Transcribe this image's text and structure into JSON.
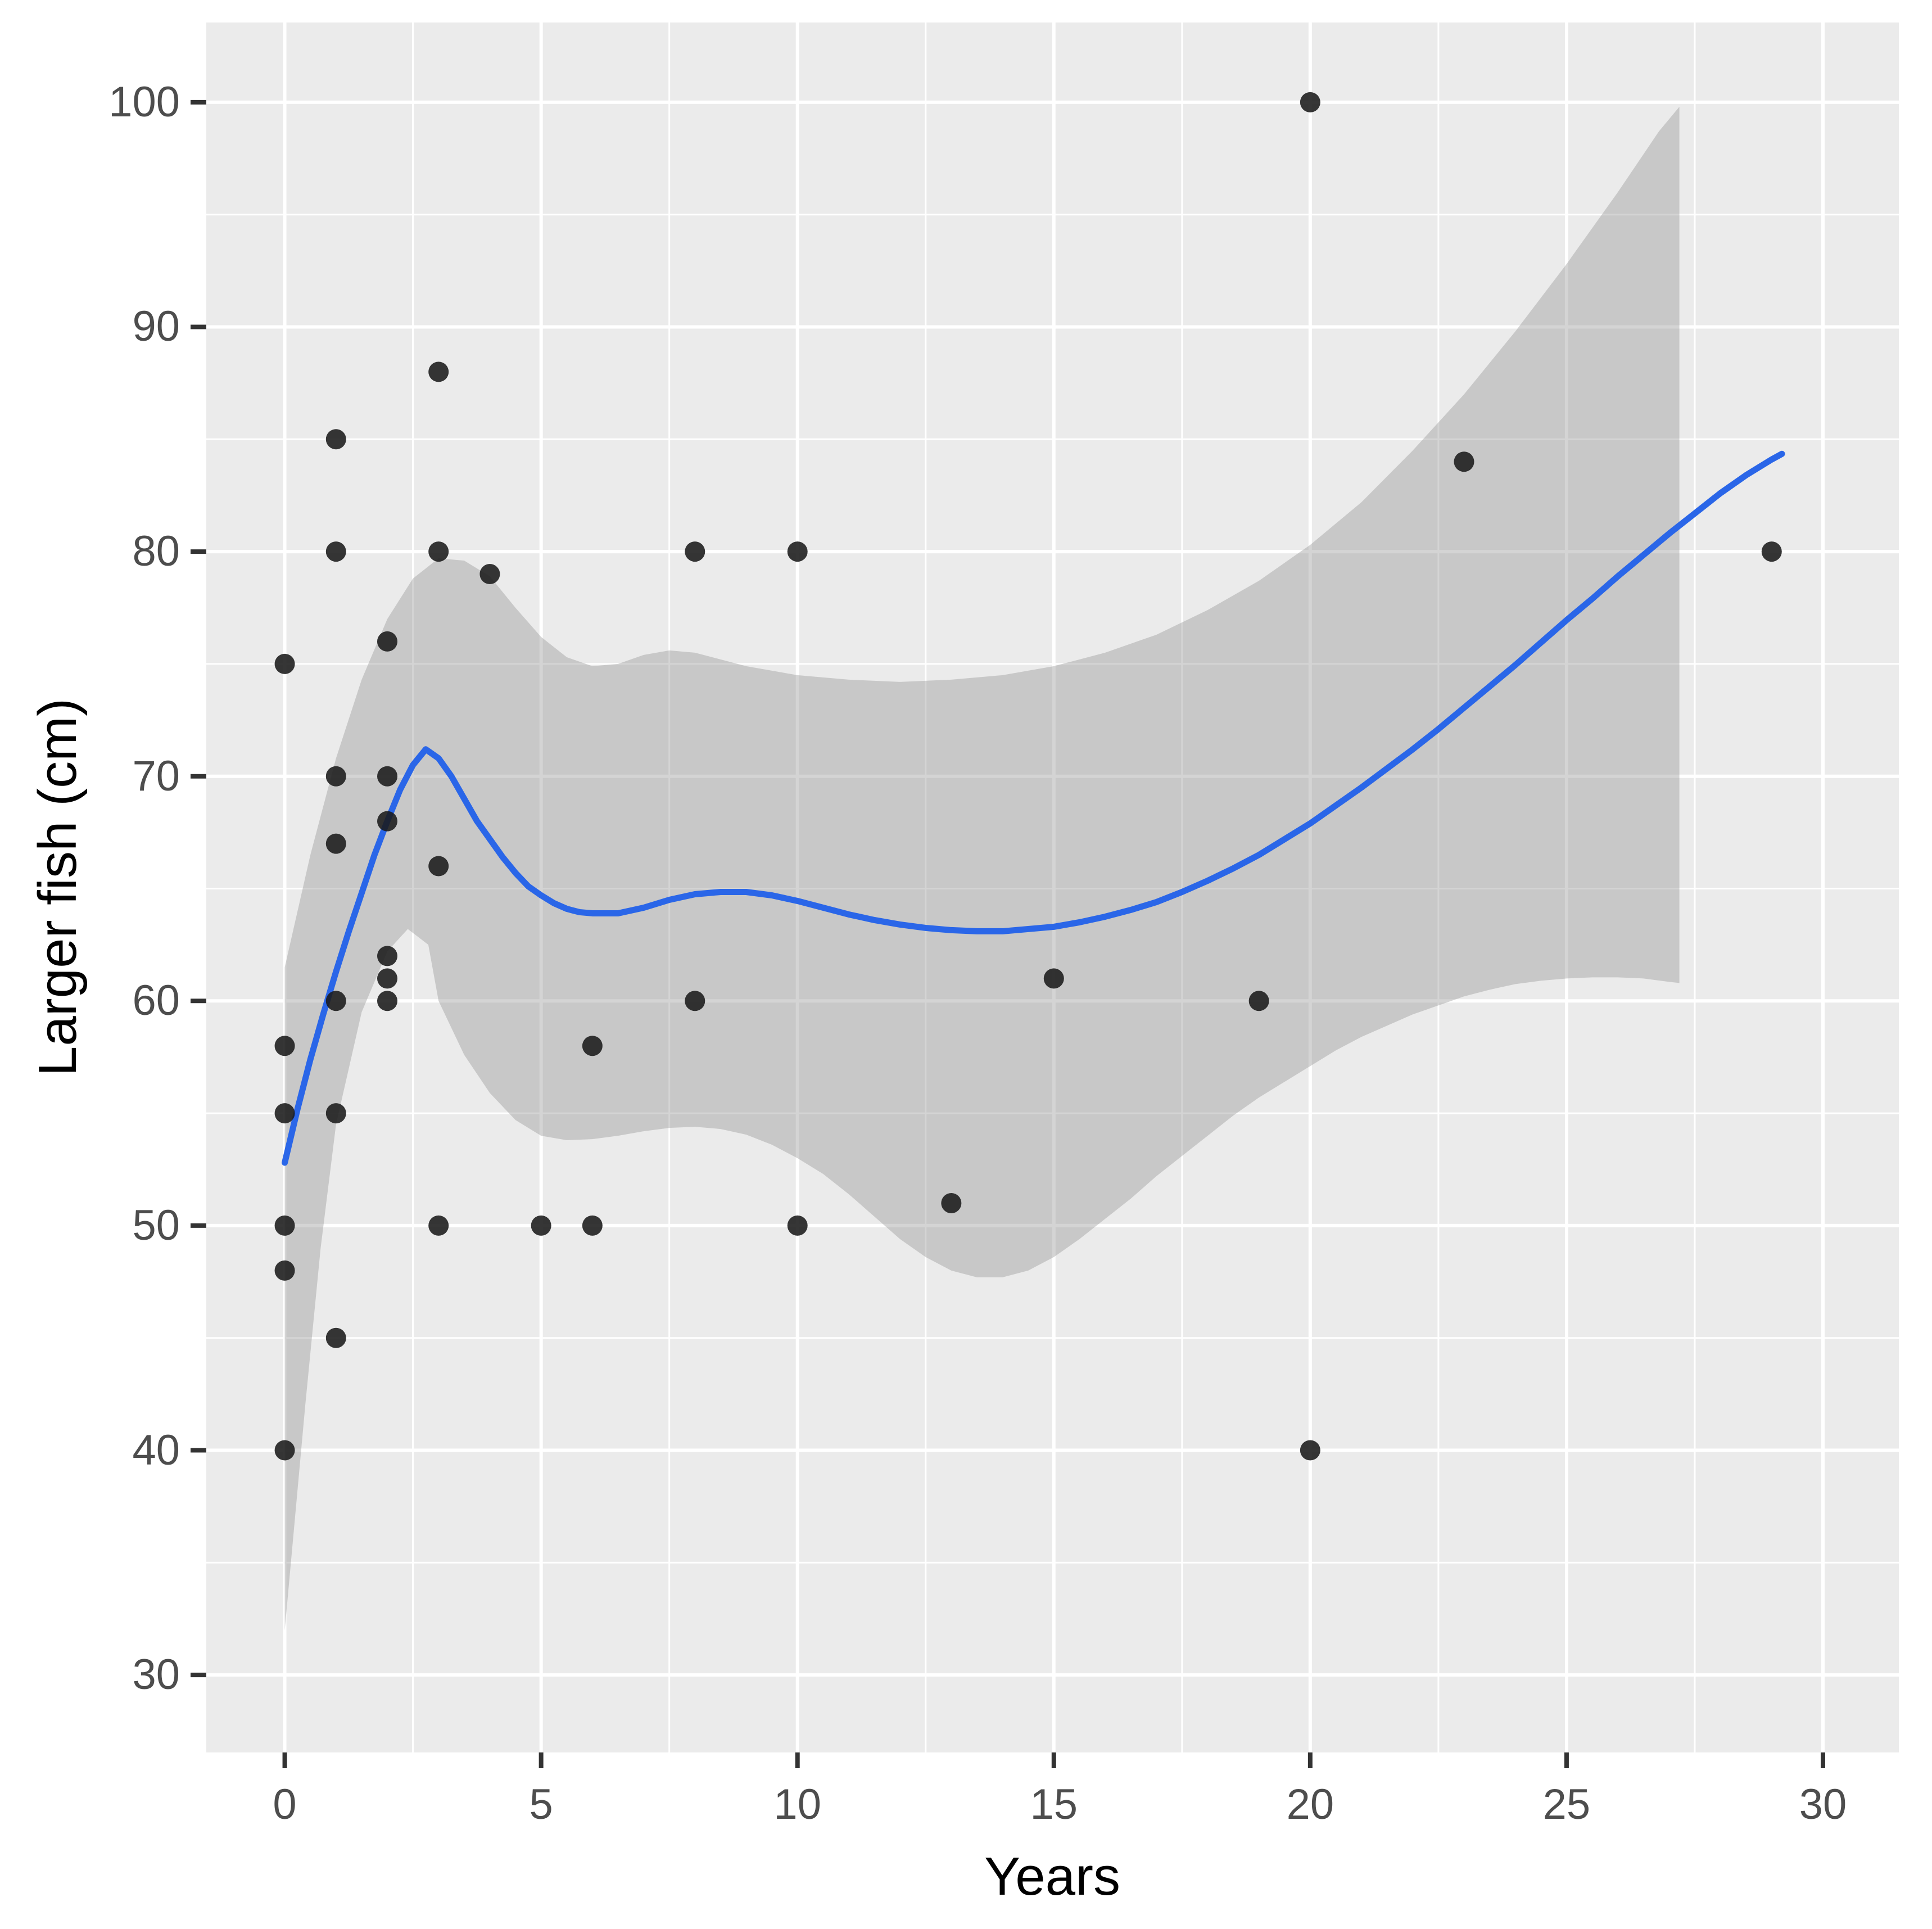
{
  "chart_data": {
    "type": "scatter",
    "title": "",
    "xlabel": "Years",
    "ylabel": "Larger fish (cm)",
    "legend": "none",
    "grid": "major-and-minor",
    "xlim": [
      -1.53,
      31.48
    ],
    "ylim": [
      26.55,
      103.55
    ],
    "x_major_ticks": [
      0,
      5,
      10,
      15,
      20,
      25,
      30
    ],
    "x_minor_ticks": [
      2.5,
      7.5,
      12.5,
      17.5,
      22.5,
      27.5
    ],
    "y_major_ticks": [
      30,
      40,
      50,
      60,
      70,
      80,
      90,
      100
    ],
    "y_minor_ticks": [
      35,
      45,
      55,
      65,
      75,
      85,
      95
    ],
    "points": [
      [
        0,
        40
      ],
      [
        0,
        48
      ],
      [
        0,
        50
      ],
      [
        0,
        55
      ],
      [
        0,
        58
      ],
      [
        0,
        75
      ],
      [
        1,
        45
      ],
      [
        1,
        55
      ],
      [
        1,
        60
      ],
      [
        1,
        67
      ],
      [
        1,
        70
      ],
      [
        1,
        80
      ],
      [
        1,
        85
      ],
      [
        2,
        60
      ],
      [
        2,
        61
      ],
      [
        2,
        62
      ],
      [
        2,
        68
      ],
      [
        2,
        70
      ],
      [
        2,
        76
      ],
      [
        3,
        50
      ],
      [
        3,
        66
      ],
      [
        3,
        80
      ],
      [
        3,
        88
      ],
      [
        4,
        79
      ],
      [
        5,
        50
      ],
      [
        6,
        50
      ],
      [
        6,
        58
      ],
      [
        8,
        60
      ],
      [
        8,
        80
      ],
      [
        10,
        50
      ],
      [
        10,
        80
      ],
      [
        13,
        51
      ],
      [
        15,
        61
      ],
      [
        19,
        60
      ],
      [
        20,
        40
      ],
      [
        20,
        100
      ],
      [
        23,
        84
      ],
      [
        29,
        80
      ]
    ],
    "smooth_line": [
      [
        0,
        52.8
      ],
      [
        0.25,
        55.2
      ],
      [
        0.5,
        57.4
      ],
      [
        0.75,
        59.4
      ],
      [
        1,
        61.3
      ],
      [
        1.25,
        63.1
      ],
      [
        1.5,
        64.8
      ],
      [
        1.75,
        66.5
      ],
      [
        2,
        68.0
      ],
      [
        2.25,
        69.4
      ],
      [
        2.5,
        70.5
      ],
      [
        2.75,
        71.2
      ],
      [
        3,
        70.8
      ],
      [
        3.25,
        70.0
      ],
      [
        3.5,
        69.0
      ],
      [
        3.75,
        68.0
      ],
      [
        4,
        67.2
      ],
      [
        4.25,
        66.4
      ],
      [
        4.5,
        65.7
      ],
      [
        4.75,
        65.1
      ],
      [
        5,
        64.7
      ],
      [
        5.25,
        64.35
      ],
      [
        5.5,
        64.1
      ],
      [
        5.75,
        63.95
      ],
      [
        6,
        63.9
      ],
      [
        6.5,
        63.9
      ],
      [
        7,
        64.15
      ],
      [
        7.5,
        64.5
      ],
      [
        8,
        64.75
      ],
      [
        8.5,
        64.85
      ],
      [
        9,
        64.85
      ],
      [
        9.5,
        64.7
      ],
      [
        10,
        64.45
      ],
      [
        10.5,
        64.15
      ],
      [
        11,
        63.85
      ],
      [
        11.5,
        63.6
      ],
      [
        12,
        63.4
      ],
      [
        12.5,
        63.25
      ],
      [
        13,
        63.15
      ],
      [
        13.5,
        63.1
      ],
      [
        14,
        63.1
      ],
      [
        14.5,
        63.2
      ],
      [
        15,
        63.3
      ],
      [
        15.5,
        63.5
      ],
      [
        16,
        63.75
      ],
      [
        16.5,
        64.05
      ],
      [
        17,
        64.4
      ],
      [
        17.5,
        64.85
      ],
      [
        18,
        65.35
      ],
      [
        18.5,
        65.9
      ],
      [
        19,
        66.5
      ],
      [
        19.5,
        67.2
      ],
      [
        20,
        67.9
      ],
      [
        20.5,
        68.7
      ],
      [
        21,
        69.5
      ],
      [
        21.5,
        70.35
      ],
      [
        22,
        71.2
      ],
      [
        22.5,
        72.1
      ],
      [
        23,
        73.05
      ],
      [
        23.5,
        74.0
      ],
      [
        24,
        74.95
      ],
      [
        24.5,
        75.95
      ],
      [
        25,
        76.95
      ],
      [
        25.5,
        77.9
      ],
      [
        26,
        78.9
      ],
      [
        26.5,
        79.85
      ],
      [
        27,
        80.8
      ],
      [
        27.5,
        81.7
      ],
      [
        28,
        82.6
      ],
      [
        28.5,
        83.4
      ],
      [
        29,
        84.1
      ],
      [
        29.2,
        84.35
      ]
    ],
    "ribbon_upper": [
      [
        0,
        61.5
      ],
      [
        0.5,
        66.5
      ],
      [
        1,
        70.8
      ],
      [
        1.5,
        74.3
      ],
      [
        2,
        77.0
      ],
      [
        2.5,
        78.8
      ],
      [
        3,
        79.7
      ],
      [
        3.5,
        79.6
      ],
      [
        4,
        78.9
      ],
      [
        4.5,
        77.5
      ],
      [
        5,
        76.2
      ],
      [
        5.5,
        75.3
      ],
      [
        6,
        74.9
      ],
      [
        6.5,
        75.0
      ],
      [
        7,
        75.4
      ],
      [
        7.5,
        75.6
      ],
      [
        8,
        75.5
      ],
      [
        8.5,
        75.2
      ],
      [
        9,
        74.9
      ],
      [
        9.5,
        74.7
      ],
      [
        10,
        74.5
      ],
      [
        11,
        74.3
      ],
      [
        12,
        74.2
      ],
      [
        13,
        74.3
      ],
      [
        14,
        74.5
      ],
      [
        15,
        74.9
      ],
      [
        16,
        75.5
      ],
      [
        17,
        76.3
      ],
      [
        18,
        77.4
      ],
      [
        19,
        78.7
      ],
      [
        20,
        80.3
      ],
      [
        21,
        82.2
      ],
      [
        22,
        84.5
      ],
      [
        23,
        87.0
      ],
      [
        24,
        89.8
      ],
      [
        25,
        92.8
      ],
      [
        26,
        96.0
      ],
      [
        26.8,
        98.7
      ],
      [
        27.2,
        99.8
      ]
    ],
    "ribbon_lower": [
      [
        0,
        32.0
      ],
      [
        0.1,
        34.5
      ],
      [
        0.2,
        37.0
      ],
      [
        0.4,
        42.0
      ],
      [
        0.7,
        49.0
      ],
      [
        1,
        54.5
      ],
      [
        1.5,
        59.5
      ],
      [
        2,
        62.2
      ],
      [
        2.4,
        63.2
      ],
      [
        2.8,
        62.5
      ],
      [
        3,
        60.0
      ],
      [
        3.5,
        57.6
      ],
      [
        4,
        55.9
      ],
      [
        4.5,
        54.7
      ],
      [
        5,
        54.0
      ],
      [
        5.5,
        53.8
      ],
      [
        6,
        53.85
      ],
      [
        6.5,
        54.0
      ],
      [
        7,
        54.2
      ],
      [
        7.5,
        54.35
      ],
      [
        8,
        54.4
      ],
      [
        8.5,
        54.3
      ],
      [
        9,
        54.05
      ],
      [
        9.5,
        53.6
      ],
      [
        10,
        53.0
      ],
      [
        10.5,
        52.3
      ],
      [
        11,
        51.4
      ],
      [
        11.5,
        50.4
      ],
      [
        12,
        49.4
      ],
      [
        12.5,
        48.6
      ],
      [
        13,
        48.0
      ],
      [
        13.5,
        47.7
      ],
      [
        14,
        47.7
      ],
      [
        14.5,
        48.0
      ],
      [
        15,
        48.6
      ],
      [
        15.5,
        49.4
      ],
      [
        16,
        50.3
      ],
      [
        16.5,
        51.2
      ],
      [
        17,
        52.2
      ],
      [
        17.5,
        53.1
      ],
      [
        18,
        54.0
      ],
      [
        18.5,
        54.9
      ],
      [
        19,
        55.7
      ],
      [
        19.5,
        56.4
      ],
      [
        20,
        57.1
      ],
      [
        20.5,
        57.8
      ],
      [
        21,
        58.4
      ],
      [
        21.5,
        58.9
      ],
      [
        22,
        59.4
      ],
      [
        22.5,
        59.8
      ],
      [
        23,
        60.2
      ],
      [
        23.5,
        60.5
      ],
      [
        24,
        60.75
      ],
      [
        24.5,
        60.9
      ],
      [
        25,
        61.0
      ],
      [
        25.5,
        61.05
      ],
      [
        26,
        61.05
      ],
      [
        26.5,
        61.0
      ],
      [
        27,
        60.85
      ],
      [
        27.2,
        60.8
      ]
    ],
    "colors": {
      "panel_background": "#EBEBEB",
      "gridline": "#FFFFFF",
      "ribbon_fill_rgba": "rgba(153,153,153,0.42)",
      "smooth_line": "#2A66E8",
      "point_fill": "#1A1A1A",
      "tick_mark": "#333333",
      "tick_label_text": "#4D4D4D",
      "axis_title_text": "#000000"
    }
  }
}
